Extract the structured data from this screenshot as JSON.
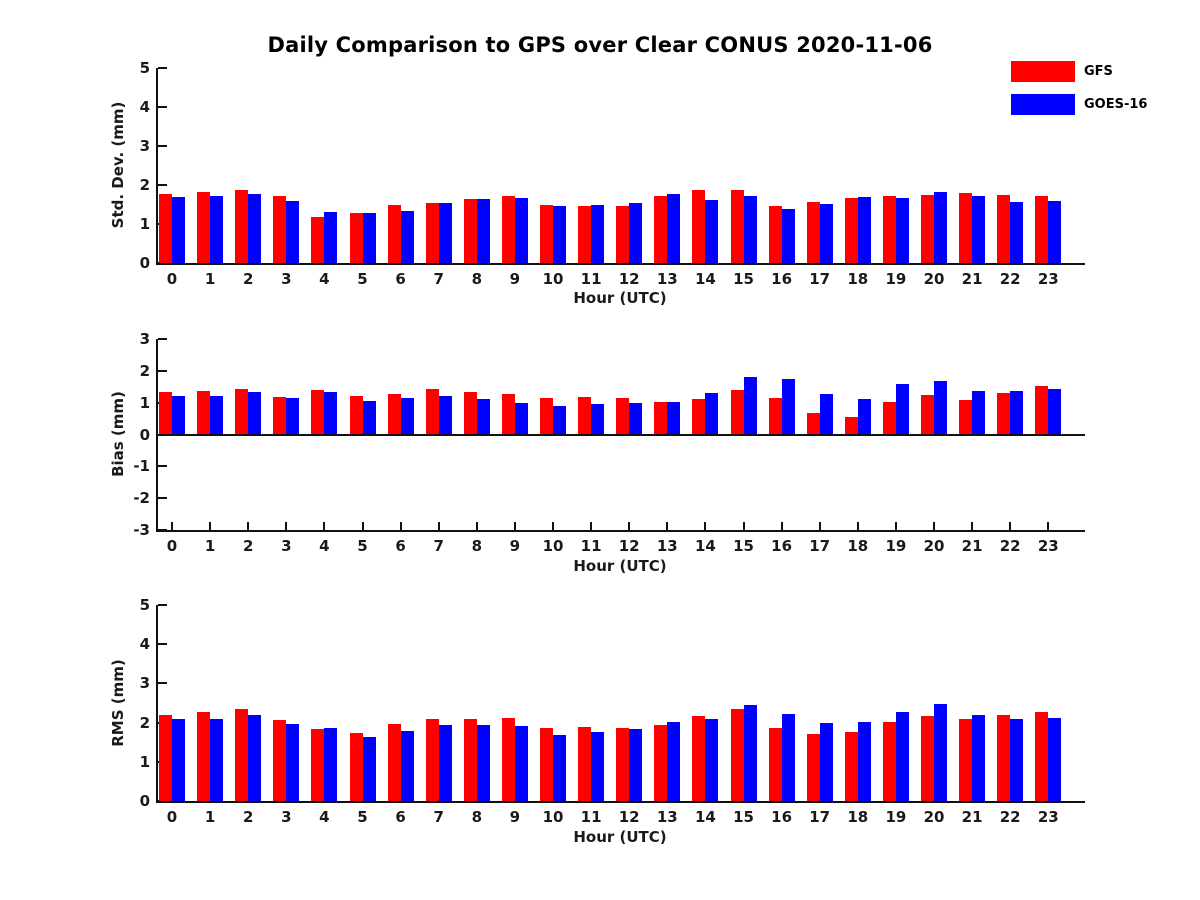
{
  "title": "Daily Comparison to GPS over Clear CONUS 2020-11-06",
  "colors": {
    "gfs": "#ff0000",
    "goes16": "#0000ff",
    "axis": "#111111",
    "text": "#1a1a1a"
  },
  "legend": {
    "position": "top-right",
    "items": [
      {
        "label": "GFS",
        "color": "#ff0000"
      },
      {
        "label": "GOES-16",
        "color": "#0000ff"
      }
    ]
  },
  "chart_data": [
    {
      "type": "bar",
      "title": "",
      "xlabel": "Hour (UTC)",
      "ylabel": "Std. Dev. (mm)",
      "ylim": [
        0,
        5
      ],
      "yticks": [
        0,
        1,
        2,
        3,
        4,
        5
      ],
      "grid": false,
      "legend_position": "top-right",
      "categories": [
        "0",
        "1",
        "2",
        "3",
        "4",
        "5",
        "6",
        "7",
        "8",
        "9",
        "10",
        "11",
        "12",
        "13",
        "14",
        "15",
        "16",
        "17",
        "18",
        "19",
        "20",
        "21",
        "22",
        "23"
      ],
      "series": [
        {
          "name": "GFS",
          "color": "#ff0000",
          "values": [
            1.78,
            1.83,
            1.86,
            1.71,
            1.19,
            1.29,
            1.49,
            1.55,
            1.65,
            1.73,
            1.49,
            1.47,
            1.47,
            1.72,
            1.88,
            1.88,
            1.45,
            1.56,
            1.67,
            1.73,
            1.74,
            1.8,
            1.75,
            1.72
          ]
        },
        {
          "name": "GOES-16",
          "color": "#0000ff",
          "values": [
            1.7,
            1.71,
            1.76,
            1.6,
            1.32,
            1.27,
            1.34,
            1.53,
            1.63,
            1.66,
            1.46,
            1.49,
            1.55,
            1.78,
            1.62,
            1.71,
            1.39,
            1.51,
            1.68,
            1.67,
            1.83,
            1.73,
            1.57,
            1.6
          ]
        }
      ]
    },
    {
      "type": "bar",
      "title": "",
      "xlabel": "Hour (UTC)",
      "ylabel": "Bias (mm)",
      "ylim": [
        -3,
        3
      ],
      "yticks": [
        -3,
        -2,
        -1,
        0,
        1,
        2,
        3
      ],
      "grid": false,
      "categories": [
        "0",
        "1",
        "2",
        "3",
        "4",
        "5",
        "6",
        "7",
        "8",
        "9",
        "10",
        "11",
        "12",
        "13",
        "14",
        "15",
        "16",
        "17",
        "18",
        "19",
        "20",
        "21",
        "22",
        "23"
      ],
      "series": [
        {
          "name": "GFS",
          "color": "#ff0000",
          "values": [
            1.32,
            1.36,
            1.44,
            1.18,
            1.4,
            1.2,
            1.28,
            1.43,
            1.32,
            1.28,
            1.16,
            1.19,
            1.16,
            1.01,
            1.1,
            1.4,
            1.15,
            0.68,
            0.55,
            1.03,
            1.25,
            1.09,
            1.3,
            1.52
          ]
        },
        {
          "name": "GOES-16",
          "color": "#0000ff",
          "values": [
            1.2,
            1.2,
            1.35,
            1.15,
            1.34,
            1.04,
            1.15,
            1.2,
            1.12,
            0.98,
            0.9,
            0.95,
            0.98,
            1.01,
            1.3,
            1.8,
            1.75,
            1.28,
            1.12,
            1.58,
            1.68,
            1.36,
            1.38,
            1.42
          ]
        }
      ]
    },
    {
      "type": "bar",
      "title": "",
      "xlabel": "Hour (UTC)",
      "ylabel": "RMS (mm)",
      "ylim": [
        0,
        5
      ],
      "yticks": [
        0,
        1,
        2,
        3,
        4,
        5
      ],
      "grid": false,
      "categories": [
        "0",
        "1",
        "2",
        "3",
        "4",
        "5",
        "6",
        "7",
        "8",
        "9",
        "10",
        "11",
        "12",
        "13",
        "14",
        "15",
        "16",
        "17",
        "18",
        "19",
        "20",
        "21",
        "22",
        "23"
      ],
      "series": [
        {
          "name": "GFS",
          "color": "#ff0000",
          "values": [
            2.19,
            2.26,
            2.34,
            2.06,
            1.84,
            1.74,
            1.97,
            2.1,
            2.09,
            2.12,
            1.86,
            1.89,
            1.85,
            1.95,
            2.18,
            2.34,
            1.86,
            1.7,
            1.77,
            2.01,
            2.16,
            2.1,
            2.19,
            2.27
          ]
        },
        {
          "name": "GOES-16",
          "color": "#0000ff",
          "values": [
            2.09,
            2.09,
            2.19,
            1.97,
            1.86,
            1.63,
            1.78,
            1.94,
            1.95,
            1.91,
            1.68,
            1.77,
            1.83,
            2.01,
            2.09,
            2.44,
            2.22,
            1.99,
            2.02,
            2.27,
            2.48,
            2.19,
            2.1,
            2.12
          ]
        }
      ]
    }
  ]
}
